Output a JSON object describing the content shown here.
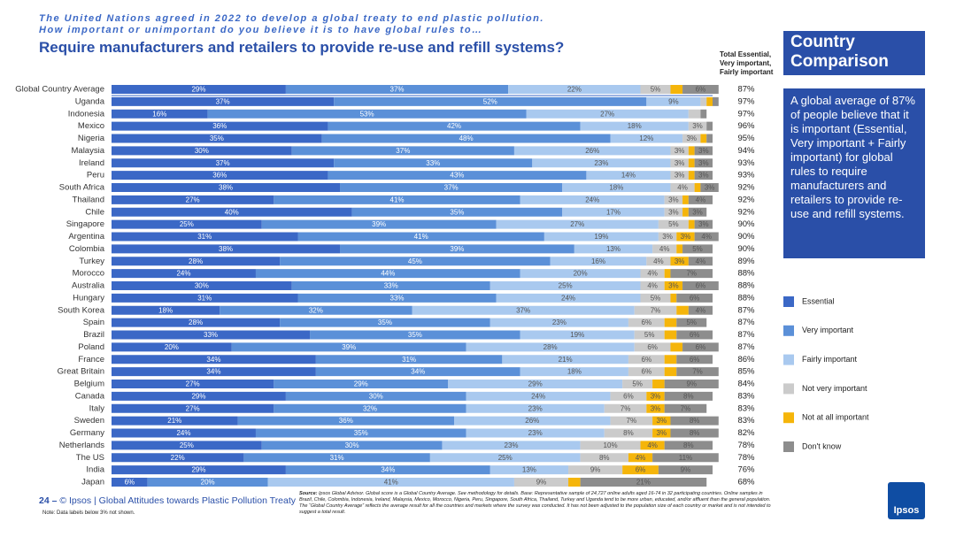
{
  "chart_data": {
    "type": "stacked-bar-horizontal",
    "supertitle": "The United Nations agreed in 2022 to develop a global treaty to end plastic pollution.",
    "question": "How important or unimportant do you believe it is to have global rules to…",
    "title": "Require manufacturers and retailers to provide re-use and refill systems?",
    "categories": [
      "Global Country Average",
      "Uganda",
      "Indonesia",
      "Mexico",
      "Nigeria",
      "Malaysia",
      "Ireland",
      "Peru",
      "South Africa",
      "Thailand",
      "Chile",
      "Singapore",
      "Argentina",
      "Colombia",
      "Turkey",
      "Morocco",
      "Australia",
      "Hungary",
      "South Korea",
      "Spain",
      "Brazil",
      "Poland",
      "France",
      "Great Britain",
      "Belgium",
      "Canada",
      "Italy",
      "Sweden",
      "Germany",
      "Netherlands",
      "The US",
      "India",
      "Japan"
    ],
    "xlim": [
      0,
      100
    ],
    "series": [
      {
        "name": "Essential",
        "color": "#3b68c6",
        "values": [
          29,
          37,
          16,
          36,
          35,
          30,
          37,
          36,
          38,
          27,
          40,
          25,
          31,
          38,
          28,
          24,
          30,
          31,
          18,
          28,
          33,
          20,
          34,
          34,
          27,
          29,
          27,
          21,
          24,
          25,
          22,
          29,
          6
        ],
        "value_labels": [
          "29%",
          "37%",
          "16%",
          "36%",
          "35%",
          "30%",
          "37%",
          "36%",
          "38%",
          "27%",
          "40%",
          "25%",
          "31%",
          "38%",
          "28%",
          "24%",
          "30%",
          "31%",
          "18%",
          "28%",
          "33%",
          "20%",
          "34%",
          "34%",
          "27%",
          "29%",
          "27%",
          "21%",
          "24%",
          "25%",
          "22%",
          "29%",
          "6%"
        ]
      },
      {
        "name": "Very important",
        "color": "#5b90d8",
        "values": [
          37,
          52,
          53,
          42,
          48,
          37,
          33,
          43,
          37,
          41,
          35,
          39,
          41,
          39,
          45,
          44,
          33,
          33,
          32,
          35,
          35,
          39,
          31,
          34,
          29,
          30,
          32,
          36,
          35,
          30,
          31,
          34,
          20
        ],
        "value_labels": [
          "37%",
          "52%",
          "53%",
          "42%",
          "48%",
          "37%",
          "33%",
          "43%",
          "37%",
          "41%",
          "35%",
          "39%",
          "41%",
          "39%",
          "45%",
          "44%",
          "33%",
          "33%",
          "32%",
          "35%",
          "35%",
          "39%",
          "31%",
          "34%",
          "29%",
          "30%",
          "32%",
          "36%",
          "35%",
          "30%",
          "31%",
          "34%",
          "20%"
        ]
      },
      {
        "name": "Fairly important",
        "color": "#a9c9ef",
        "values": [
          22,
          9,
          27,
          18,
          12,
          26,
          23,
          14,
          18,
          24,
          17,
          27,
          19,
          13,
          16,
          20,
          25,
          24,
          37,
          23,
          19,
          28,
          21,
          18,
          29,
          24,
          23,
          26,
          23,
          23,
          25,
          13,
          41
        ],
        "value_labels": [
          "22%",
          "9%",
          "27%",
          "18%",
          "12%",
          "26%",
          "23%",
          "14%",
          "18%",
          "24%",
          "17%",
          "27%",
          "19%",
          "13%",
          "16%",
          "20%",
          "25%",
          "24%",
          "37%",
          "23%",
          "19%",
          "28%",
          "21%",
          "18%",
          "29%",
          "24%",
          "23%",
          "26%",
          "23%",
          "23%",
          "25%",
          "13%",
          "41%"
        ]
      },
      {
        "name": "Not very important",
        "color": "#cbcbcb",
        "values": [
          5,
          1,
          2,
          3,
          3,
          3,
          3,
          3,
          4,
          3,
          3,
          5,
          3,
          4,
          4,
          4,
          4,
          5,
          7,
          6,
          5,
          6,
          6,
          6,
          5,
          6,
          7,
          7,
          8,
          10,
          8,
          9,
          9
        ],
        "value_labels": [
          "5%",
          null,
          null,
          "3%",
          "3%",
          "3%",
          "3%",
          "3%",
          "4%",
          "3%",
          "3%",
          "5%",
          "3%",
          "4%",
          "4%",
          "4%",
          "4%",
          "5%",
          "7%",
          "6%",
          "5%",
          "6%",
          "6%",
          "6%",
          "5%",
          "6%",
          "7%",
          "7%",
          "8%",
          "10%",
          "8%",
          "9%",
          "9%"
        ]
      },
      {
        "name": "Not at all important",
        "color": "#f5b50a",
        "values": [
          2,
          1,
          0,
          0,
          1,
          1,
          1,
          1,
          1,
          1,
          1,
          1,
          3,
          1,
          3,
          1,
          3,
          1,
          2,
          2,
          2,
          2,
          2,
          2,
          2,
          3,
          3,
          3,
          3,
          4,
          4,
          6,
          2
        ],
        "value_labels": [
          null,
          null,
          null,
          null,
          null,
          null,
          null,
          null,
          null,
          null,
          null,
          null,
          "3%",
          null,
          "3%",
          null,
          "3%",
          null,
          null,
          null,
          null,
          null,
          null,
          null,
          null,
          "3%",
          "3%",
          "3%",
          "3%",
          "4%",
          "4%",
          "6%",
          null
        ]
      },
      {
        "name": "Don't know",
        "color": "#8d8d8d",
        "values": [
          6,
          1,
          1,
          1,
          1,
          3,
          3,
          3,
          3,
          4,
          3,
          3,
          4,
          5,
          4,
          7,
          6,
          6,
          4,
          5,
          6,
          6,
          6,
          7,
          9,
          8,
          7,
          8,
          8,
          8,
          11,
          9,
          21
        ],
        "value_labels": [
          "6%",
          null,
          null,
          null,
          null,
          "3%",
          "3%",
          "3%",
          "3%",
          "4%",
          "3%",
          "3%",
          "4%",
          "5%",
          "4%",
          "7%",
          "6%",
          "6%",
          "4%",
          "5%",
          "6%",
          "6%",
          "6%",
          "7%",
          "9%",
          "8%",
          "7%",
          "8%",
          "8%",
          "8%",
          "11%",
          "9%",
          "21%"
        ]
      }
    ],
    "totals": {
      "title_lines": [
        "Total Essential,",
        "Very important,",
        "Fairly important"
      ],
      "labels": [
        "87%",
        "97%",
        "97%",
        "96%",
        "95%",
        "94%",
        "93%",
        "93%",
        "92%",
        "92%",
        "92%",
        "90%",
        "90%",
        "90%",
        "89%",
        "88%",
        "88%",
        "88%",
        "87%",
        "87%",
        "87%",
        "87%",
        "86%",
        "85%",
        "84%",
        "83%",
        "83%",
        "83%",
        "82%",
        "78%",
        "78%",
        "76%",
        "68%"
      ]
    },
    "panel_title_lines": [
      "Country",
      "Comparison"
    ],
    "panel_text": "A global average of 87% of people believe that it is important (Essential, Very important + Fairly important) for global rules to require manufacturers and retailers to provide re-use and refill systems.",
    "page_number": "24 –",
    "footer": "© Ipsos | Global Attitudes towards Plastic Pollution Treaty",
    "note": "Note: Data labels below 3% not shown.",
    "source_label": "Source:",
    "source": "Ipsos Global Advisor. Global score is a Global Country Average. See methodology for details. Base: Representative sample of 24,727 online adults aged 16-74 in 32 participating countries. Online samples in Brazil, Chile, Colombia, Indonesia, Ireland, Malaysia, Mexico, Morocco, Nigeria, Peru, Singapore, South Africa, Thailand, Turkey and Uganda tend to be more urban, educated, and/or affluent than the general population. The “Global Country Average” reflects the average result for all the countries and markets where the survey was conducted. It has not been adjusted to the population size of each country or market and is not intended to suggest a total result.",
    "logo": "Ipsos"
  }
}
